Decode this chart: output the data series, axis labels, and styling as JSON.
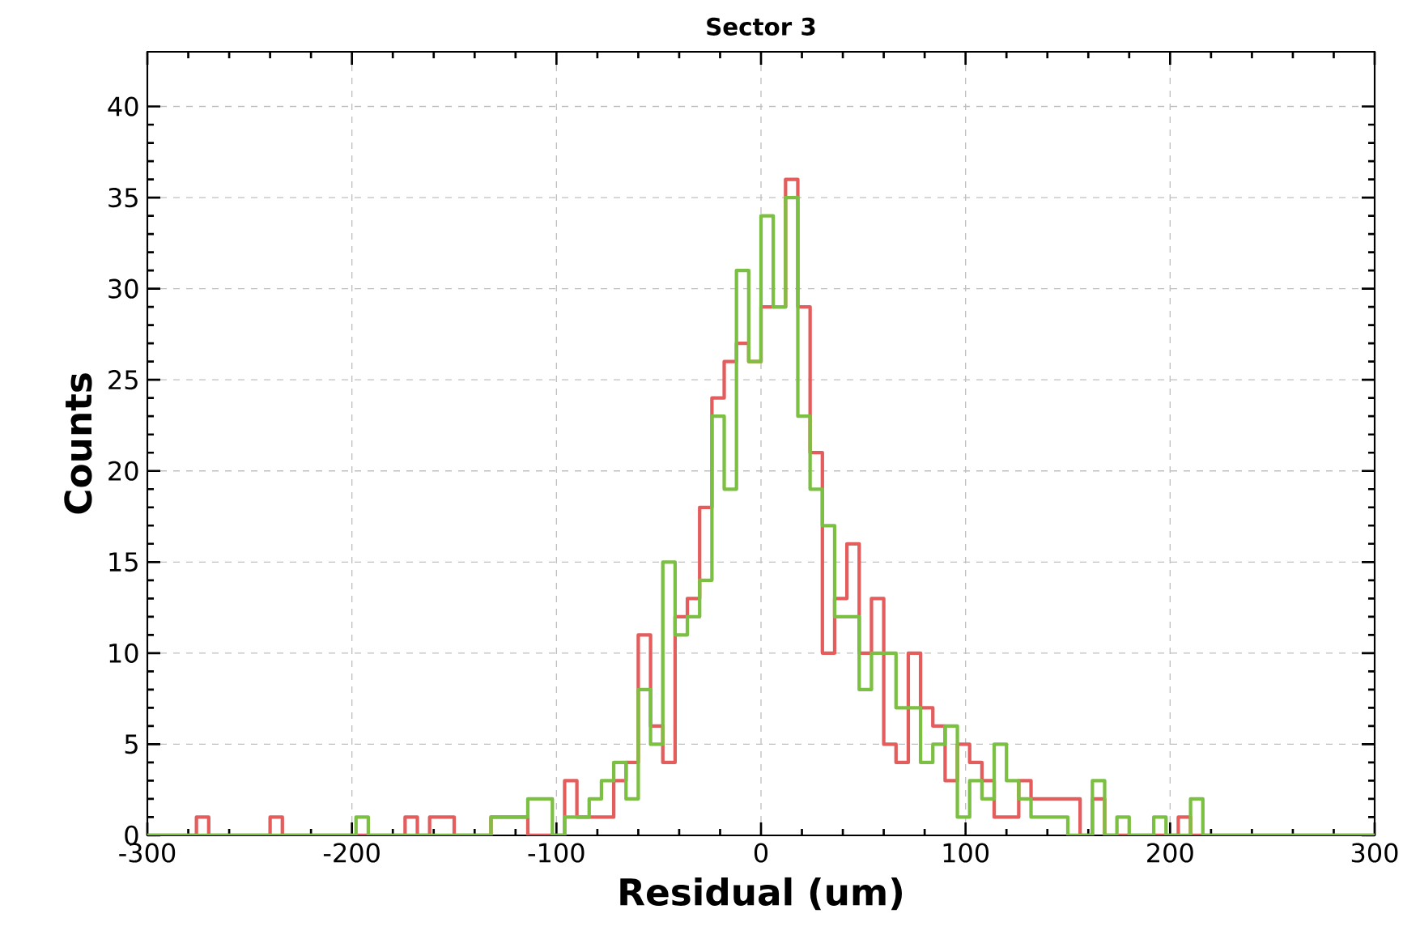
{
  "chart_data": {
    "type": "histogram",
    "title": "Sector 3",
    "xlabel": "Residual (um)",
    "ylabel": "Counts",
    "bins": [
      -300,
      -294,
      -288,
      -282,
      -276,
      -270,
      -264,
      -258,
      -252,
      -246,
      -240,
      -234,
      -228,
      -222,
      -216,
      -210,
      -204,
      -198,
      -192,
      -186,
      -180,
      -174,
      -168,
      -162,
      -156,
      -150,
      -144,
      -138,
      -132,
      -126,
      -120,
      -114,
      -108,
      -102,
      -96,
      -90,
      -84,
      -78,
      -72,
      -66,
      -60,
      -54,
      -48,
      -42,
      -36,
      -30,
      -24,
      -18,
      -12,
      -6,
      0,
      6,
      12,
      18,
      24,
      30,
      36,
      42,
      48,
      54,
      60,
      66,
      72,
      78,
      84,
      90,
      96,
      102,
      108,
      114,
      120,
      126,
      132,
      138,
      144,
      150,
      156,
      162,
      168,
      174,
      180,
      186,
      192,
      198,
      204,
      210,
      216,
      222,
      228,
      234,
      240,
      246,
      252,
      258,
      264,
      270,
      276,
      282,
      288,
      294,
      300
    ],
    "series": [
      {
        "color": "#e35d5d",
        "values": [
          0,
          0,
          0,
          0,
          1,
          0,
          0,
          0,
          0,
          0,
          1,
          0,
          0,
          0,
          0,
          0,
          0,
          0,
          0,
          0,
          0,
          1,
          0,
          1,
          1,
          0,
          0,
          0,
          1,
          1,
          1,
          0,
          0,
          0,
          3,
          1,
          1,
          1,
          3,
          4,
          11,
          6,
          4,
          12,
          13,
          18,
          24,
          26,
          27,
          26,
          29,
          29,
          36,
          29,
          21,
          10,
          13,
          16,
          10,
          13,
          5,
          4,
          10,
          7,
          6,
          3,
          5,
          4,
          3,
          1,
          1,
          3,
          2,
          2,
          2,
          2,
          0,
          2,
          0,
          0,
          0,
          0,
          0,
          0,
          1,
          0,
          0,
          0,
          0,
          0,
          0,
          0,
          0,
          0,
          0,
          0,
          0,
          0,
          0,
          0
        ]
      },
      {
        "color": "#7cc043",
        "values": [
          0,
          0,
          0,
          0,
          0,
          0,
          0,
          0,
          0,
          0,
          0,
          0,
          0,
          0,
          0,
          0,
          0,
          1,
          0,
          0,
          0,
          0,
          0,
          0,
          0,
          0,
          0,
          0,
          1,
          1,
          1,
          2,
          2,
          0,
          1,
          1,
          2,
          3,
          4,
          2,
          8,
          5,
          15,
          11,
          12,
          14,
          23,
          19,
          31,
          26,
          34,
          29,
          35,
          23,
          19,
          17,
          12,
          12,
          8,
          10,
          10,
          7,
          7,
          4,
          5,
          6,
          1,
          3,
          2,
          5,
          3,
          2,
          1,
          1,
          1,
          0,
          0,
          3,
          0,
          1,
          0,
          0,
          1,
          0,
          0,
          2,
          0,
          0,
          0,
          0,
          0,
          0,
          0,
          0,
          0,
          0,
          0,
          0,
          0,
          0
        ]
      }
    ],
    "xlim": [
      -300,
      300
    ],
    "ylim": [
      0,
      43
    ],
    "xticks": [
      -300,
      -200,
      -100,
      0,
      100,
      200,
      300
    ],
    "yticks": [
      0,
      5,
      10,
      15,
      20,
      25,
      30,
      35,
      40
    ],
    "grid": true
  }
}
